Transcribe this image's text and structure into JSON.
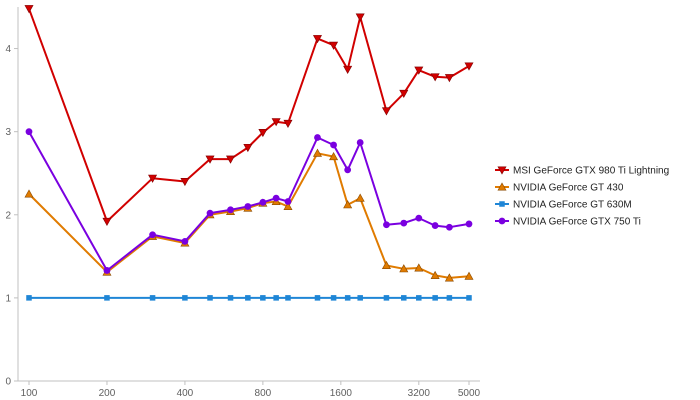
{
  "chart_data": {
    "type": "line",
    "title": "",
    "xlabel": "",
    "ylabel": "",
    "x_scale": "log",
    "xlim": [
      100,
      5000
    ],
    "ylim": [
      0,
      4.5
    ],
    "grid": false,
    "legend_position": "right",
    "x_tick_labels": [
      "100",
      "200",
      "400",
      "800",
      "1600",
      "3200",
      "5000"
    ],
    "x_ticks": [
      100,
      200,
      400,
      800,
      1600,
      3200,
      5000
    ],
    "y_ticks": [
      0,
      1,
      2,
      3,
      4
    ],
    "y_tick_labels": [
      "0",
      "1",
      "2",
      "3",
      "4"
    ],
    "x": [
      100,
      200,
      300,
      400,
      500,
      600,
      700,
      800,
      900,
      1000,
      1300,
      1500,
      1700,
      1900,
      2400,
      2800,
      3200,
      3700,
      4200,
      5000
    ],
    "series": [
      {
        "name": "MSI GeForce GTX 980 Ti Lightning",
        "color": "#d10000",
        "marker": "triangle-down",
        "values": [
          4.48,
          1.92,
          2.44,
          2.4,
          2.67,
          2.67,
          2.81,
          2.99,
          3.12,
          3.1,
          4.12,
          4.04,
          3.75,
          4.38,
          3.25,
          3.46,
          3.74,
          3.66,
          3.65,
          3.79
        ]
      },
      {
        "name": "NVIDIA GeForce GT 430",
        "color": "#e07b00",
        "marker": "triangle-up",
        "values": [
          2.25,
          1.31,
          1.74,
          1.66,
          2.0,
          2.04,
          2.08,
          2.14,
          2.16,
          2.1,
          2.74,
          2.7,
          2.12,
          2.2,
          1.39,
          1.35,
          1.36,
          1.27,
          1.24,
          1.26
        ]
      },
      {
        "name": "NVIDIA GeForce GT 630M",
        "color": "#1f86d6",
        "marker": "square",
        "values": [
          1.0,
          1.0,
          1.0,
          1.0,
          1.0,
          1.0,
          1.0,
          1.0,
          1.0,
          1.0,
          1.0,
          1.0,
          1.0,
          1.0,
          1.0,
          1.0,
          1.0,
          1.0,
          1.0,
          1.0
        ]
      },
      {
        "name": "NVIDIA GeForce GTX 750 Ti",
        "color": "#7a00e0",
        "marker": "circle",
        "values": [
          3.0,
          1.33,
          1.76,
          1.68,
          2.02,
          2.06,
          2.1,
          2.15,
          2.2,
          2.16,
          2.93,
          2.84,
          2.54,
          2.87,
          1.88,
          1.9,
          1.96,
          1.87,
          1.85,
          1.89
        ]
      }
    ]
  }
}
